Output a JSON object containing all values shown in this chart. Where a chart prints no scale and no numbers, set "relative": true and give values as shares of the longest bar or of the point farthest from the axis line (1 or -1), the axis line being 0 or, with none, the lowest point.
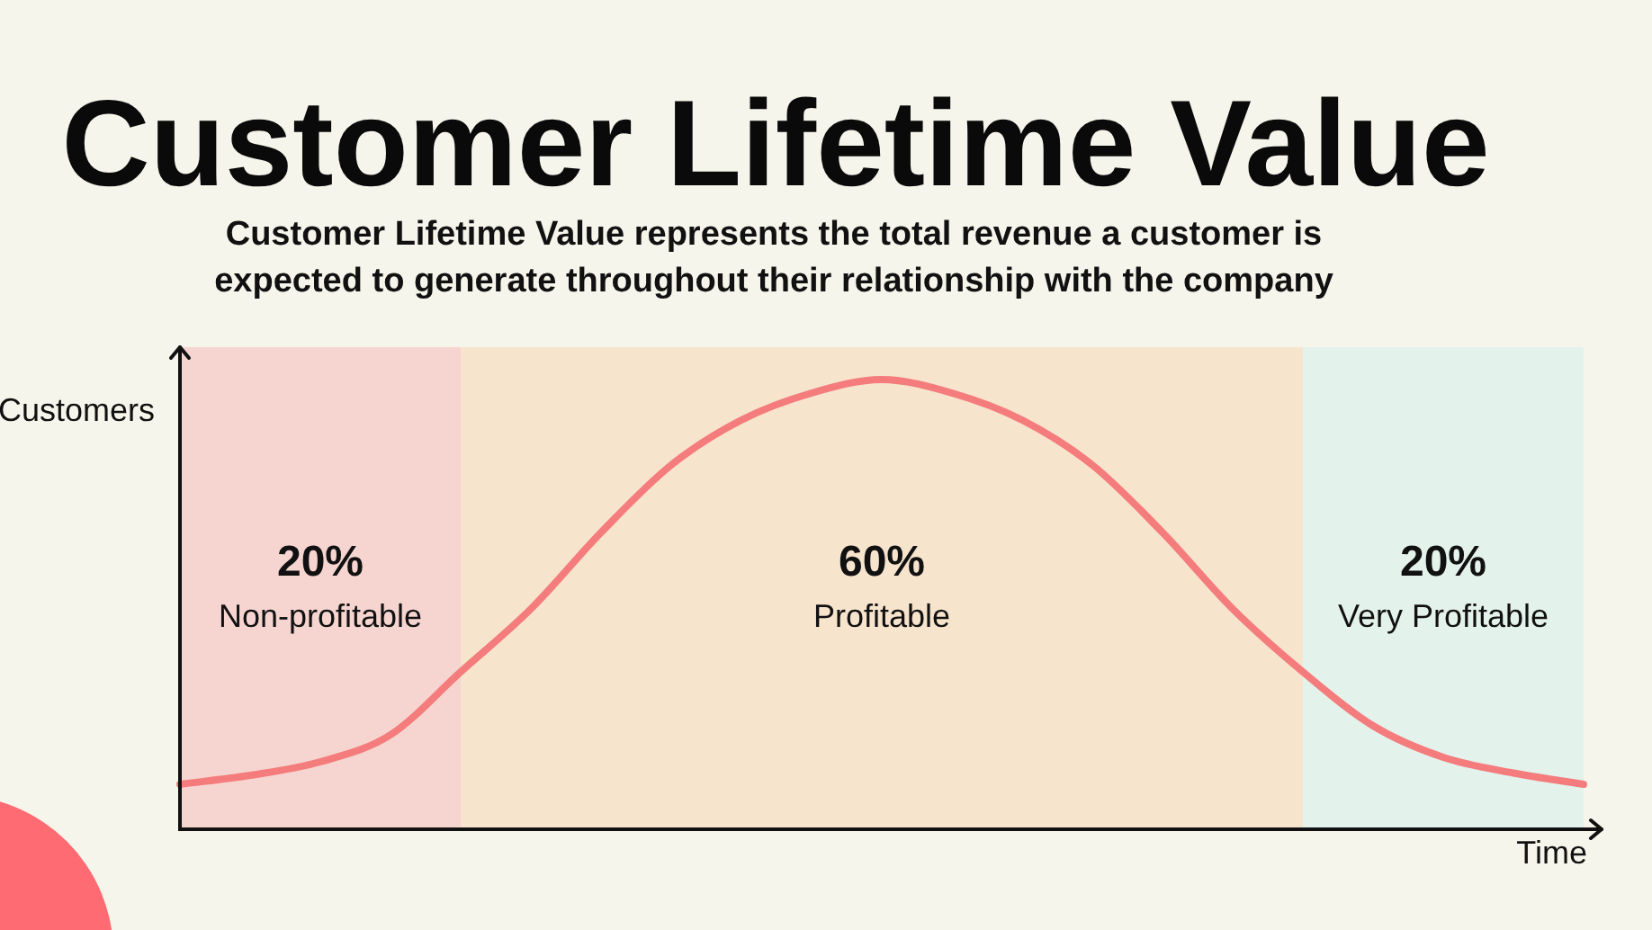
{
  "chart_data": {
    "type": "line",
    "title": "Customer Lifetime Value",
    "subtitle": "Customer Lifetime Value represents the total revenue a customer is expected to generate throughout their relationship with the company",
    "xlabel": "Time",
    "ylabel": "Customers",
    "relative": true,
    "categories": [
      null,
      null,
      null,
      null,
      null,
      null,
      null,
      null,
      null,
      null,
      null,
      null,
      null,
      null,
      null,
      null,
      null,
      null,
      null,
      null,
      null
    ],
    "values": [
      0.1,
      0.12,
      0.15,
      0.21,
      0.35,
      0.49,
      0.66,
      0.81,
      0.91,
      0.97,
      1.0,
      0.97,
      0.91,
      0.81,
      0.66,
      0.49,
      0.35,
      0.23,
      0.16,
      0.125,
      0.1
    ],
    "color": "#f47c7c",
    "annotations": [
      "20%\nNon-profitable",
      "60%\nProfitable",
      "20%\nVery Profitable"
    ]
  }
}
